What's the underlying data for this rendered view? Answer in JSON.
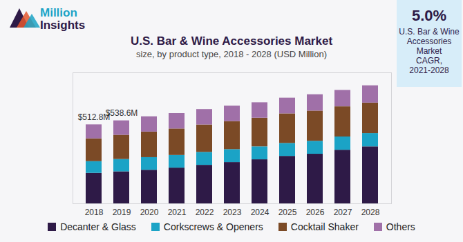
{
  "brand": [
    "Million",
    "Insights"
  ],
  "callout": {
    "value": 5.0,
    "label": "5.0%",
    "text": [
      "U.S. Bar & Wine",
      "Accessories",
      "Market",
      "CAGR,",
      "2021-2028"
    ]
  },
  "chart_data": {
    "type": "bar",
    "title": "U.S. Bar & Wine Accessories Market",
    "subtitle": "size, by product type, 2018 - 2028 (USD Million)",
    "categories": [
      "2018",
      "2019",
      "2020",
      "2021",
      "2022",
      "2023",
      "2024",
      "2025",
      "2026",
      "2027",
      "2028"
    ],
    "series": [
      {
        "name": "Decanter & Glass",
        "color": "#2e1a47",
        "values": [
          198,
          208,
          218,
          232,
          250,
          268,
          286,
          308,
          322,
          348,
          370
        ]
      },
      {
        "name": "Corkscrews & Openers",
        "color": "#1ba3c6",
        "values": [
          76,
          80,
          82,
          82,
          84,
          84,
          84,
          84,
          84,
          86,
          86
        ]
      },
      {
        "name": "Cocktail Shaker",
        "color": "#7b4a26",
        "values": [
          148,
          157,
          166,
          172,
          178,
          182,
          186,
          192,
          196,
          196,
          198
        ]
      },
      {
        "name": "Others",
        "color": "#a070a8",
        "values": [
          90.8,
          93.6,
          99,
          100,
          100,
          100,
          100,
          102,
          106,
          106,
          112
        ]
      }
    ],
    "annotations": [
      {
        "category": "2018",
        "text": "$512.8M",
        "value": 512.8
      },
      {
        "category": "2019",
        "text": "$538.6M",
        "value": 538.6
      }
    ],
    "ylim": [
      0,
      850
    ],
    "yticks": [],
    "stacked": true,
    "grid": false,
    "legend": "bottom",
    "tick_labels": "x"
  }
}
